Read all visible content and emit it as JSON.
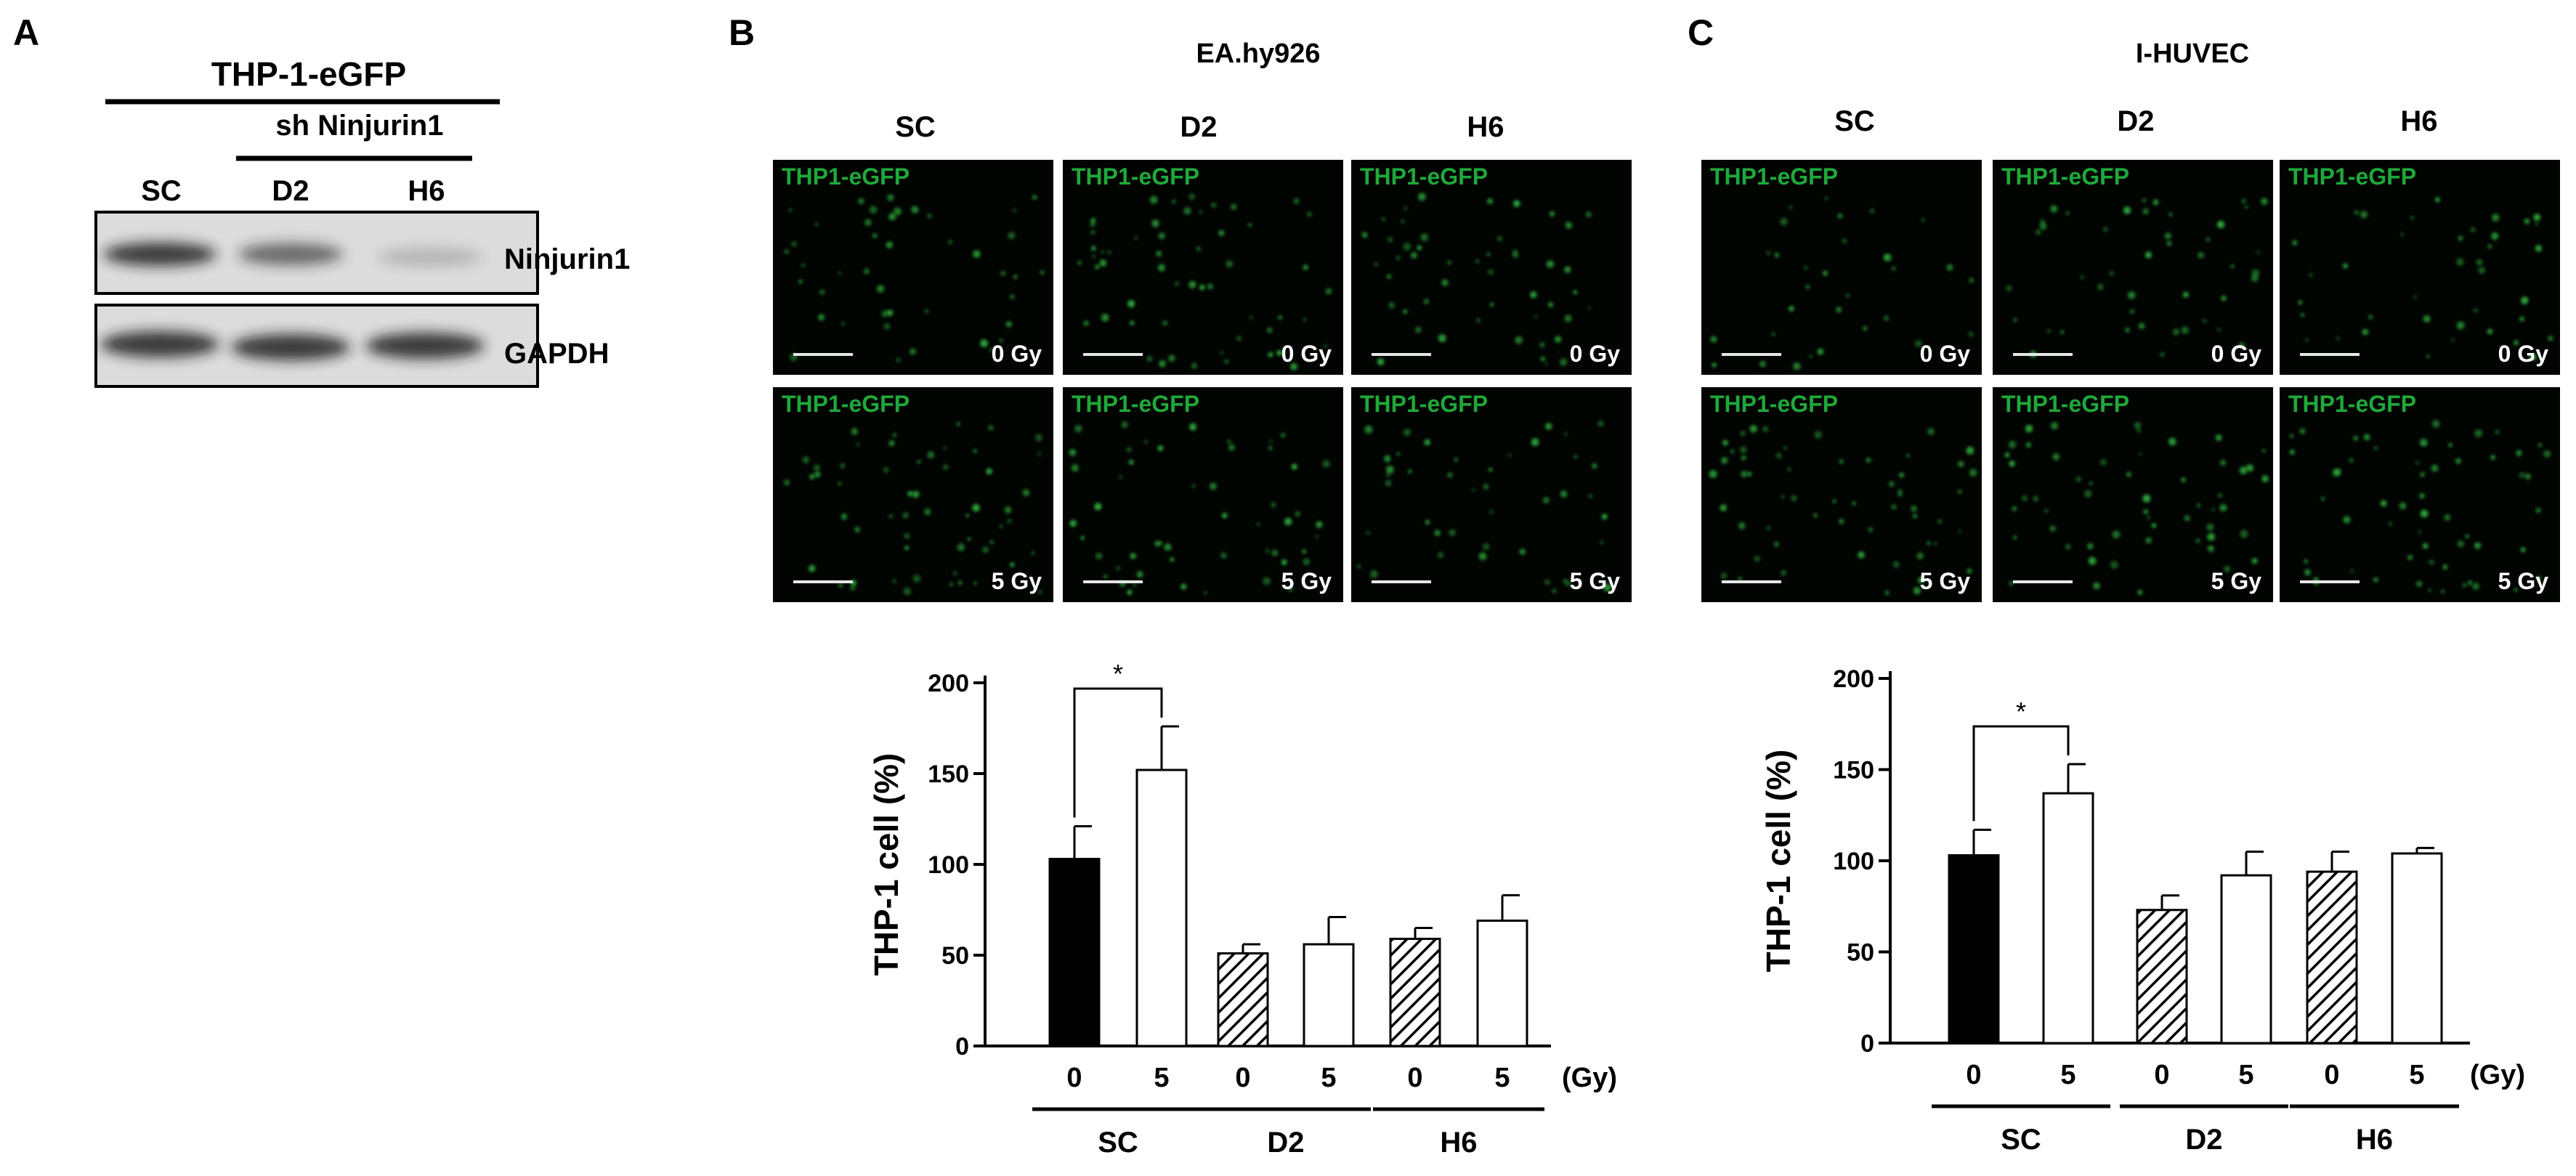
{
  "panel_a": {
    "letter": "A",
    "cell_line": "THP-1-eGFP",
    "group_label": "sh Ninjurin1",
    "lanes": [
      "SC",
      "D2",
      "H6"
    ],
    "blots": [
      {
        "label": "Ninjurin1",
        "intensity": [
          0.85,
          0.6,
          0.2
        ]
      },
      {
        "label": "GAPDH",
        "intensity": [
          0.85,
          0.85,
          0.85
        ]
      }
    ]
  },
  "panel_b": {
    "letter": "B",
    "title": "EA.hy926",
    "columns": [
      "SC",
      "D2",
      "H6"
    ],
    "image_label": "THP1-eGFP",
    "doses": [
      "0 Gy",
      "5 Gy"
    ]
  },
  "panel_c": {
    "letter": "C",
    "title": "I-HUVEC",
    "columns": [
      "SC",
      "D2",
      "H6"
    ],
    "image_label": "THP1-eGFP",
    "doses": [
      "0 Gy",
      "5 Gy"
    ]
  },
  "chart_data": [
    {
      "type": "bar",
      "ylabel": "THP-1 cell (%)",
      "ylim": [
        0,
        200
      ],
      "yticks": [
        0,
        50,
        100,
        150,
        200
      ],
      "categories": [
        "0",
        "5",
        "0",
        "5",
        "0",
        "5"
      ],
      "x_unit": "(Gy)",
      "groups": [
        "SC",
        "D2",
        "H6"
      ],
      "values": [
        103,
        152,
        51,
        56,
        59,
        69
      ],
      "errors": [
        18,
        24,
        5,
        15,
        6,
        14
      ],
      "fills": [
        "solid",
        "empty",
        "hatched",
        "empty",
        "hatched",
        "empty"
      ],
      "significance": {
        "from": 0,
        "to": 1,
        "label": "*"
      }
    },
    {
      "type": "bar",
      "ylabel": "THP-1 cell (%)",
      "ylim": [
        0,
        200
      ],
      "yticks": [
        0,
        50,
        100,
        150,
        200
      ],
      "categories": [
        "0",
        "5",
        "0",
        "5",
        "0",
        "5"
      ],
      "x_unit": "(Gy)",
      "groups": [
        "SC",
        "D2",
        "H6"
      ],
      "values": [
        103,
        137,
        73,
        92,
        94,
        104
      ],
      "errors": [
        14,
        16,
        8,
        13,
        11,
        3
      ],
      "fills": [
        "solid",
        "empty",
        "hatched",
        "empty",
        "hatched",
        "empty"
      ],
      "significance": {
        "from": 0,
        "to": 1,
        "label": "*"
      }
    }
  ]
}
